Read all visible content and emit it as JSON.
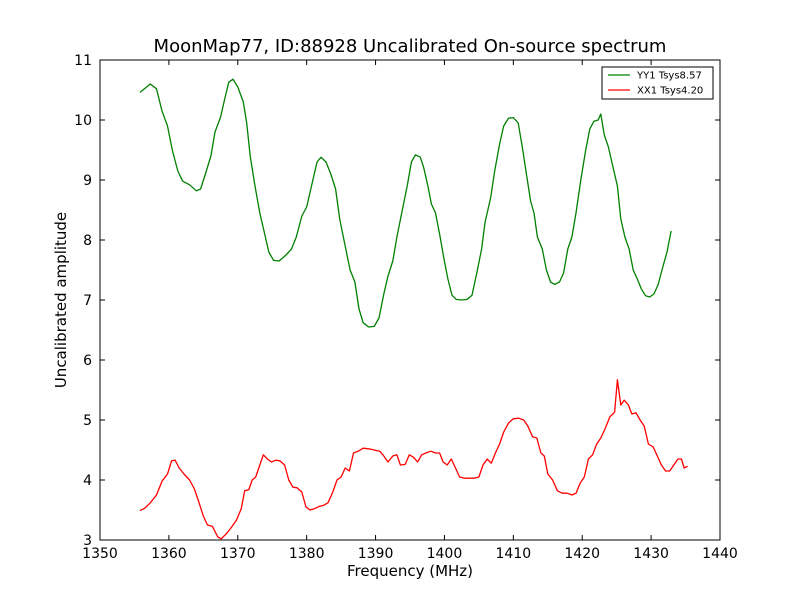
{
  "chart_data": {
    "type": "line",
    "title": "MoonMap77, ID:88928 Uncalibrated On-source spectrum",
    "xlabel": "Frequency (MHz)",
    "ylabel": "Uncalibrated amplitude",
    "xlim": [
      1350,
      1440
    ],
    "ylim": [
      3,
      11
    ],
    "xticks": [
      1350,
      1360,
      1370,
      1380,
      1390,
      1400,
      1410,
      1420,
      1430,
      1440
    ],
    "yticks": [
      3,
      4,
      5,
      6,
      7,
      8,
      9,
      10,
      11
    ],
    "grid": false,
    "legend_position": "top-right",
    "series": [
      {
        "name": "YY1 Tsys8.57",
        "color": "#008000",
        "points": [
          [
            1355.8,
            10.46
          ],
          [
            1357.3,
            10.6
          ],
          [
            1358.2,
            10.52
          ],
          [
            1359.0,
            10.15
          ],
          [
            1359.8,
            9.9
          ],
          [
            1360.5,
            9.5
          ],
          [
            1361.3,
            9.15
          ],
          [
            1362.0,
            8.98
          ],
          [
            1363.0,
            8.92
          ],
          [
            1364.0,
            8.82
          ],
          [
            1364.6,
            8.85
          ],
          [
            1365.3,
            9.1
          ],
          [
            1366.1,
            9.4
          ],
          [
            1366.7,
            9.8
          ],
          [
            1367.5,
            10.05
          ],
          [
            1368.1,
            10.35
          ],
          [
            1368.7,
            10.63
          ],
          [
            1369.3,
            10.68
          ],
          [
            1370.0,
            10.55
          ],
          [
            1370.8,
            10.3
          ],
          [
            1371.3,
            9.95
          ],
          [
            1371.8,
            9.4
          ],
          [
            1372.5,
            8.9
          ],
          [
            1373.2,
            8.45
          ],
          [
            1373.8,
            8.15
          ],
          [
            1374.5,
            7.8
          ],
          [
            1375.2,
            7.66
          ],
          [
            1376.0,
            7.65
          ],
          [
            1377.0,
            7.75
          ],
          [
            1377.8,
            7.85
          ],
          [
            1378.5,
            8.05
          ],
          [
            1379.3,
            8.4
          ],
          [
            1380.0,
            8.55
          ],
          [
            1380.7,
            8.9
          ],
          [
            1381.5,
            9.3
          ],
          [
            1382.1,
            9.38
          ],
          [
            1382.8,
            9.3
          ],
          [
            1383.5,
            9.1
          ],
          [
            1384.2,
            8.85
          ],
          [
            1384.8,
            8.35
          ],
          [
            1385.6,
            7.9
          ],
          [
            1386.3,
            7.5
          ],
          [
            1387.0,
            7.3
          ],
          [
            1387.6,
            6.85
          ],
          [
            1388.2,
            6.62
          ],
          [
            1389.0,
            6.55
          ],
          [
            1389.8,
            6.56
          ],
          [
            1390.5,
            6.7
          ],
          [
            1391.2,
            7.1
          ],
          [
            1391.8,
            7.4
          ],
          [
            1392.5,
            7.65
          ],
          [
            1393.1,
            8.05
          ],
          [
            1393.8,
            8.45
          ],
          [
            1394.6,
            8.9
          ],
          [
            1395.2,
            9.3
          ],
          [
            1395.8,
            9.42
          ],
          [
            1396.5,
            9.38
          ],
          [
            1397.0,
            9.2
          ],
          [
            1397.6,
            8.9
          ],
          [
            1398.1,
            8.6
          ],
          [
            1398.7,
            8.45
          ],
          [
            1399.3,
            8.1
          ],
          [
            1399.9,
            7.7
          ],
          [
            1400.5,
            7.35
          ],
          [
            1401.1,
            7.08
          ],
          [
            1401.7,
            7.01
          ],
          [
            1402.5,
            7.0
          ],
          [
            1403.3,
            7.01
          ],
          [
            1404.0,
            7.08
          ],
          [
            1404.7,
            7.45
          ],
          [
            1405.4,
            7.85
          ],
          [
            1405.9,
            8.3
          ],
          [
            1406.7,
            8.7
          ],
          [
            1407.3,
            9.15
          ],
          [
            1408.0,
            9.6
          ],
          [
            1408.6,
            9.9
          ],
          [
            1409.3,
            10.03
          ],
          [
            1410.0,
            10.04
          ],
          [
            1410.7,
            9.95
          ],
          [
            1411.3,
            9.55
          ],
          [
            1411.9,
            9.1
          ],
          [
            1412.5,
            8.65
          ],
          [
            1413.0,
            8.45
          ],
          [
            1413.5,
            8.05
          ],
          [
            1414.2,
            7.85
          ],
          [
            1414.8,
            7.5
          ],
          [
            1415.4,
            7.3
          ],
          [
            1416.0,
            7.26
          ],
          [
            1416.7,
            7.3
          ],
          [
            1417.3,
            7.45
          ],
          [
            1417.9,
            7.85
          ],
          [
            1418.5,
            8.05
          ],
          [
            1419.1,
            8.45
          ],
          [
            1419.8,
            9.0
          ],
          [
            1420.5,
            9.5
          ],
          [
            1421.1,
            9.85
          ],
          [
            1421.7,
            9.98
          ],
          [
            1422.3,
            10.0
          ],
          [
            1422.7,
            10.1
          ],
          [
            1423.2,
            9.75
          ],
          [
            1423.8,
            9.55
          ],
          [
            1424.5,
            9.2
          ],
          [
            1425.1,
            8.9
          ],
          [
            1425.6,
            8.35
          ],
          [
            1426.2,
            8.05
          ],
          [
            1426.8,
            7.85
          ],
          [
            1427.4,
            7.5
          ],
          [
            1428.0,
            7.35
          ],
          [
            1428.6,
            7.18
          ],
          [
            1429.2,
            7.07
          ],
          [
            1429.8,
            7.05
          ],
          [
            1430.4,
            7.1
          ],
          [
            1431.0,
            7.25
          ],
          [
            1431.7,
            7.55
          ],
          [
            1432.3,
            7.8
          ],
          [
            1432.9,
            8.15
          ]
        ]
      },
      {
        "name": "XX1 Tsys4.20",
        "color": "#ff0000",
        "points": [
          [
            1355.8,
            3.49
          ],
          [
            1356.5,
            3.53
          ],
          [
            1357.3,
            3.62
          ],
          [
            1358.2,
            3.75
          ],
          [
            1359.0,
            3.98
          ],
          [
            1359.8,
            4.1
          ],
          [
            1360.4,
            4.32
          ],
          [
            1360.9,
            4.33
          ],
          [
            1361.5,
            4.2
          ],
          [
            1362.2,
            4.1
          ],
          [
            1363.0,
            4.0
          ],
          [
            1363.7,
            3.85
          ],
          [
            1364.3,
            3.65
          ],
          [
            1365.0,
            3.4
          ],
          [
            1365.6,
            3.25
          ],
          [
            1366.3,
            3.23
          ],
          [
            1367.1,
            3.05
          ],
          [
            1367.6,
            3.02
          ],
          [
            1368.3,
            3.1
          ],
          [
            1369.0,
            3.2
          ],
          [
            1369.8,
            3.33
          ],
          [
            1370.5,
            3.52
          ],
          [
            1371.0,
            3.82
          ],
          [
            1371.6,
            3.84
          ],
          [
            1372.1,
            4.0
          ],
          [
            1372.6,
            4.05
          ],
          [
            1373.2,
            4.25
          ],
          [
            1373.7,
            4.42
          ],
          [
            1374.3,
            4.35
          ],
          [
            1374.9,
            4.3
          ],
          [
            1375.5,
            4.33
          ],
          [
            1376.1,
            4.32
          ],
          [
            1376.8,
            4.25
          ],
          [
            1377.4,
            4.0
          ],
          [
            1378.0,
            3.88
          ],
          [
            1378.6,
            3.87
          ],
          [
            1379.3,
            3.8
          ],
          [
            1379.9,
            3.55
          ],
          [
            1380.5,
            3.5
          ],
          [
            1381.1,
            3.52
          ],
          [
            1381.8,
            3.56
          ],
          [
            1382.5,
            3.58
          ],
          [
            1383.1,
            3.62
          ],
          [
            1383.8,
            3.8
          ],
          [
            1384.4,
            4.0
          ],
          [
            1385.0,
            4.05
          ],
          [
            1385.6,
            4.2
          ],
          [
            1386.2,
            4.15
          ],
          [
            1386.8,
            4.45
          ],
          [
            1387.5,
            4.48
          ],
          [
            1388.2,
            4.53
          ],
          [
            1389.0,
            4.52
          ],
          [
            1389.8,
            4.5
          ],
          [
            1390.6,
            4.48
          ],
          [
            1391.2,
            4.4
          ],
          [
            1391.8,
            4.3
          ],
          [
            1392.5,
            4.4
          ],
          [
            1393.1,
            4.42
          ],
          [
            1393.6,
            4.25
          ],
          [
            1394.3,
            4.26
          ],
          [
            1394.9,
            4.42
          ],
          [
            1395.5,
            4.38
          ],
          [
            1396.1,
            4.3
          ],
          [
            1396.7,
            4.42
          ],
          [
            1397.3,
            4.45
          ],
          [
            1398.0,
            4.48
          ],
          [
            1398.7,
            4.45
          ],
          [
            1399.3,
            4.45
          ],
          [
            1399.8,
            4.3
          ],
          [
            1400.4,
            4.25
          ],
          [
            1401.0,
            4.35
          ],
          [
            1401.6,
            4.2
          ],
          [
            1402.2,
            4.05
          ],
          [
            1402.9,
            4.03
          ],
          [
            1403.6,
            4.03
          ],
          [
            1404.3,
            4.03
          ],
          [
            1405.0,
            4.05
          ],
          [
            1405.6,
            4.25
          ],
          [
            1406.2,
            4.35
          ],
          [
            1406.8,
            4.28
          ],
          [
            1407.4,
            4.45
          ],
          [
            1408.0,
            4.6
          ],
          [
            1408.6,
            4.8
          ],
          [
            1409.3,
            4.95
          ],
          [
            1410.0,
            5.02
          ],
          [
            1410.8,
            5.03
          ],
          [
            1411.5,
            5.0
          ],
          [
            1412.1,
            4.9
          ],
          [
            1412.8,
            4.72
          ],
          [
            1413.4,
            4.7
          ],
          [
            1414.0,
            4.45
          ],
          [
            1414.5,
            4.4
          ],
          [
            1415.0,
            4.1
          ],
          [
            1415.7,
            4.0
          ],
          [
            1416.4,
            3.82
          ],
          [
            1417.1,
            3.78
          ],
          [
            1417.8,
            3.78
          ],
          [
            1418.5,
            3.75
          ],
          [
            1419.1,
            3.78
          ],
          [
            1419.7,
            3.95
          ],
          [
            1420.3,
            4.05
          ],
          [
            1420.9,
            4.35
          ],
          [
            1421.5,
            4.42
          ],
          [
            1422.1,
            4.6
          ],
          [
            1422.7,
            4.7
          ],
          [
            1423.3,
            4.85
          ],
          [
            1424.0,
            5.05
          ],
          [
            1424.7,
            5.13
          ],
          [
            1425.1,
            5.67
          ],
          [
            1425.6,
            5.25
          ],
          [
            1426.1,
            5.33
          ],
          [
            1426.7,
            5.25
          ],
          [
            1427.2,
            5.1
          ],
          [
            1427.8,
            5.12
          ],
          [
            1428.4,
            5.0
          ],
          [
            1429.0,
            4.9
          ],
          [
            1429.6,
            4.6
          ],
          [
            1430.3,
            4.55
          ],
          [
            1430.9,
            4.4
          ],
          [
            1431.5,
            4.25
          ],
          [
            1432.1,
            4.15
          ],
          [
            1432.7,
            4.15
          ],
          [
            1433.3,
            4.25
          ],
          [
            1433.9,
            4.35
          ],
          [
            1434.4,
            4.35
          ],
          [
            1434.8,
            4.2
          ],
          [
            1435.3,
            4.23
          ]
        ]
      }
    ]
  }
}
